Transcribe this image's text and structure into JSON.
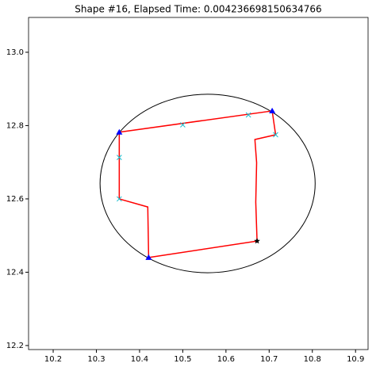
{
  "chart_data": {
    "type": "shape",
    "title": "Shape #16, Elapsed Time: 0.004236698150634766",
    "xlim": [
      10.143,
      10.929
    ],
    "ylim": [
      12.189,
      13.095
    ],
    "xticks": [
      10.2,
      10.3,
      10.4,
      10.5,
      10.6,
      10.7,
      10.8,
      10.9
    ],
    "yticks": [
      12.2,
      12.4,
      12.6,
      12.8,
      {
        "value": 13,
        "label": "13.0"
      }
    ],
    "ellipse": {
      "center": [
        10.5575,
        12.642
      ],
      "width": 0.498,
      "height": 0.487,
      "color": "#000000"
    },
    "lines": [
      {
        "color": "#ff0000",
        "x": [
          10.353,
          10.707,
          10.715,
          10.667,
          10.671,
          10.669,
          10.672,
          10.421,
          10.419,
          10.353,
          10.353
        ],
        "values": [
          12.782,
          12.84,
          12.775,
          12.762,
          12.699,
          12.591,
          12.485,
          12.44,
          12.578,
          12.6,
          12.782
        ]
      }
    ],
    "markers": [
      {
        "marker": "triangle",
        "color": "#0000ff",
        "x": [
          10.353,
          10.707,
          10.421
        ],
        "values": [
          12.782,
          12.84,
          12.44
        ]
      },
      {
        "marker": "cross",
        "color": "#17becf",
        "x": [
          10.5,
          10.652,
          10.715,
          10.353,
          10.353
        ],
        "values": [
          12.802,
          12.829,
          12.775,
          12.713,
          12.6
        ]
      },
      {
        "marker": "star",
        "color": "#000000",
        "x": [
          10.672
        ],
        "values": [
          12.485
        ]
      }
    ]
  }
}
